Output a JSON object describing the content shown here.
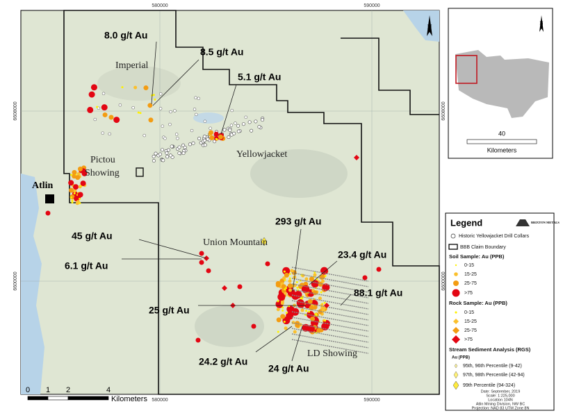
{
  "map": {
    "grid_labels": {
      "top": [
        "580000",
        "590000"
      ],
      "bottom": [
        "580000",
        "590000"
      ],
      "left": [
        "6608000",
        "6600000"
      ],
      "right": [
        "6608000",
        "6600000"
      ]
    },
    "north": "N",
    "places": [
      "Imperial",
      "Yellowjacket",
      "Pictou",
      "Showing",
      "Atlin",
      "Union Mountain",
      "LD Showing"
    ],
    "assays": [
      "8.0 g/t Au",
      "8.5 g/t Au",
      "5.1 g/t Au",
      "45 g/t Au",
      "6.1 g/t Au",
      "293 g/t Au",
      "23.4 g/t Au",
      "88.1 g/t Au",
      "25 g/t Au",
      "24.2 g/t Au",
      "24 g/t Au"
    ],
    "scale_bar": {
      "ticks": [
        "0",
        "1",
        "2",
        "4"
      ],
      "unit": "Kilometers"
    }
  },
  "inset": {
    "north": "N",
    "scale_label": "40",
    "unit": "Kilometers"
  },
  "legend": {
    "title": "Legend",
    "logo": "BRIXTON METALS",
    "drill_collars": "Historic Yellowjacket Drill Collars",
    "claim": "BBB Claim Boundary",
    "soil": {
      "title": "Soil Sample: Au (PPB)",
      "classes": [
        "0-15",
        "15-25",
        "25-75",
        ">75"
      ]
    },
    "rock": {
      "title": "Rock Sample: Au (PPB)",
      "classes": [
        "0-15",
        "15-25",
        "25-75",
        ">75"
      ]
    },
    "stream": {
      "title": "Stream Sediment Analysis (RGS)",
      "unit": "Au (PPB)",
      "classes": [
        "95th, 96th Percentile (9-42)",
        "97th, 98th Percentile (42-94)",
        "99th Percentile (94-324)"
      ]
    },
    "footer": [
      "Date: September, 2019",
      "Scale: 1:225,000",
      "Location 104N",
      "Atlin Mining Division, NW BC",
      "Projection: NAD 83 UTM Zone 8N"
    ]
  }
}
